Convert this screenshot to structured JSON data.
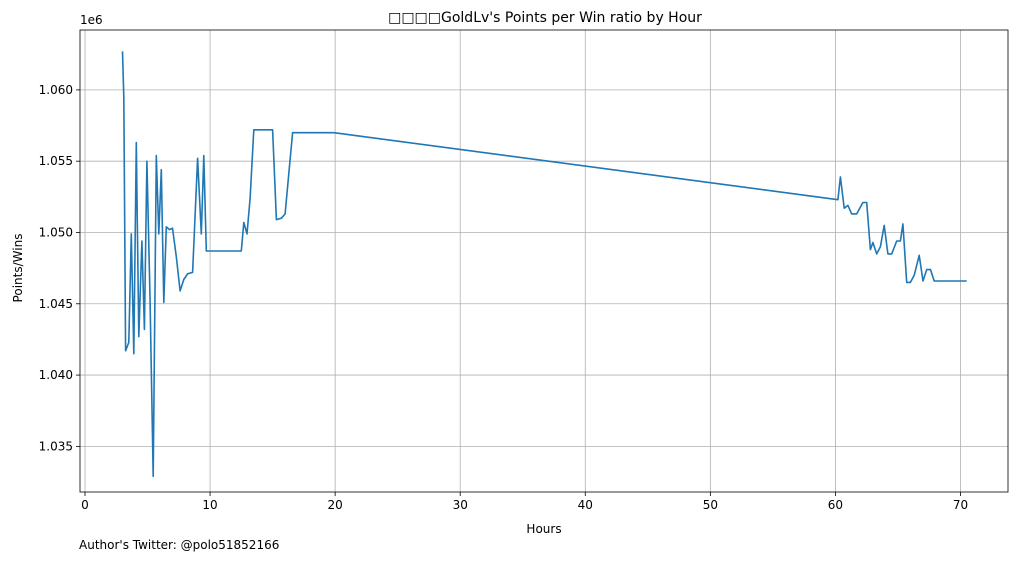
{
  "chart_data": {
    "type": "line",
    "title": "□□□□GoldLv's Points per Win ratio by Hour",
    "xlabel": "Hours",
    "ylabel": "Points/Wins",
    "y_offset_label": "1e6",
    "xlim": [
      -0.4,
      73.8
    ],
    "ylim": [
      1.0318,
      1.0642
    ],
    "x_ticks": [
      0,
      10,
      20,
      30,
      40,
      50,
      60,
      70
    ],
    "x_tick_labels": [
      "0",
      "10",
      "20",
      "30",
      "40",
      "50",
      "60",
      "70"
    ],
    "y_ticks": [
      1.035,
      1.04,
      1.045,
      1.05,
      1.055,
      1.06
    ],
    "y_tick_labels": [
      "1.035",
      "1.040",
      "1.045",
      "1.050",
      "1.055",
      "1.060"
    ],
    "grid": true,
    "line_color": "#1f77b4",
    "series": [
      {
        "name": "Points/Wins",
        "x": [
          3.0,
          3.1,
          3.25,
          3.5,
          3.7,
          3.9,
          4.1,
          4.3,
          4.55,
          4.75,
          4.95,
          5.2,
          5.45,
          5.7,
          5.9,
          6.1,
          6.3,
          6.5,
          6.75,
          7.0,
          7.3,
          7.6,
          7.9,
          8.2,
          8.6,
          9.0,
          9.3,
          9.5,
          9.7,
          9.95,
          10.2,
          12.5,
          12.7,
          12.95,
          13.2,
          13.5,
          15.0,
          15.3,
          15.7,
          16.0,
          16.3,
          16.6,
          19.9,
          60.2,
          60.4,
          60.7,
          61.0,
          61.3,
          61.7,
          62.2,
          62.5,
          62.8,
          63.0,
          63.3,
          63.6,
          63.9,
          64.2,
          64.5,
          64.9,
          65.2,
          65.4,
          65.7,
          66.0,
          66.3,
          66.7,
          67.0,
          67.3,
          67.6,
          67.9,
          68.2,
          70.5
        ],
        "y": [
          1.0627,
          1.0595,
          1.0417,
          1.0423,
          1.0499,
          1.0415,
          1.0563,
          1.0427,
          1.0494,
          1.0432,
          1.055,
          1.0455,
          1.0329,
          1.0554,
          1.0499,
          1.0544,
          1.0451,
          1.0504,
          1.0502,
          1.0503,
          1.0483,
          1.0459,
          1.0467,
          1.0471,
          1.0472,
          1.0552,
          1.0499,
          1.0554,
          1.0487,
          1.0487,
          1.0487,
          1.0487,
          1.0507,
          1.0499,
          1.0524,
          1.0572,
          1.0572,
          1.0509,
          1.051,
          1.0513,
          1.0542,
          1.057,
          1.057,
          1.0523,
          1.0539,
          1.0517,
          1.0519,
          1.0513,
          1.0513,
          1.0521,
          1.0521,
          1.0488,
          1.0493,
          1.0485,
          1.049,
          1.0505,
          1.0485,
          1.0485,
          1.0494,
          1.0494,
          1.0506,
          1.0465,
          1.0465,
          1.047,
          1.0484,
          1.0466,
          1.0474,
          1.0474,
          1.0466,
          1.0466,
          1.0466
        ]
      }
    ]
  },
  "footer": {
    "credit": "Author's Twitter: @polo51852166"
  }
}
